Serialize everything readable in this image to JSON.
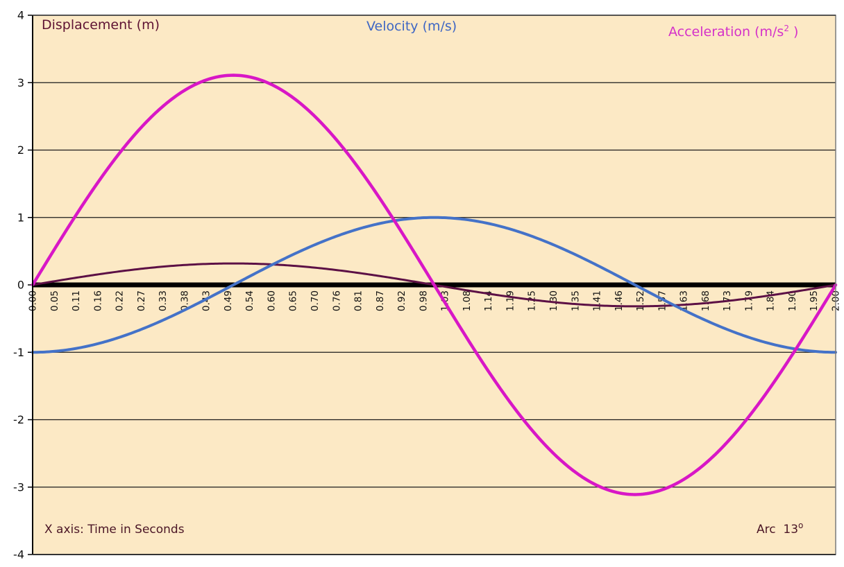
{
  "figure": {
    "annotations": {
      "displacement_title": "Displacement (m)",
      "velocity_title": "Velocity (m/s)",
      "acceleration_title_pre": "Acceleration (m/s",
      "acceleration_title_sup": "2",
      "acceleration_title_post": " )",
      "x_axis_note": "X axis: Time in Seconds",
      "arc_note_pre": "Arc  13",
      "arc_note_sup": "o"
    },
    "colors": {
      "outer_background": "#FFFFFF",
      "plot_background": "#FCE9C5",
      "displacement": "#5C1045",
      "velocity": "#4472C8",
      "acceleration": "#D817C6",
      "displacement_label": "#5E1333",
      "velocity_label": "#3E66C4",
      "acceleration_label": "#D431C9",
      "note_text": "#4B1626",
      "grid_line": "#1A1A1A",
      "zero_axis": "#000000",
      "plot_border": "#7A7A7A",
      "tick_text": "#111111"
    }
  },
  "chart_data": {
    "type": "line",
    "title": "",
    "xlabel": "Time in Seconds",
    "ylabel": "",
    "x_range": [
      0,
      2
    ],
    "ylim": [
      -4,
      4
    ],
    "grid": "horizontal-only",
    "legend_position": "in-plot corner annotations",
    "y_ticks": [
      4,
      3,
      2,
      1,
      0,
      -1,
      -2,
      -3,
      -4
    ],
    "x_tick_labels": [
      "0.00",
      "0.05",
      "0.11",
      "0.16",
      "0.22",
      "0.27",
      "0.33",
      "0.38",
      "0.43",
      "0.49",
      "0.54",
      "0.60",
      "0.65",
      "0.70",
      "0.76",
      "0.81",
      "0.87",
      "0.92",
      "0.98",
      "1.03",
      "1.08",
      "1.14",
      "1.19",
      "1.25",
      "1.30",
      "1.35",
      "1.41",
      "1.46",
      "1.52",
      "1.57",
      "1.63",
      "1.68",
      "1.73",
      "1.79",
      "1.84",
      "1.90",
      "1.95",
      "2.00"
    ],
    "series": [
      {
        "name": "Displacement (m)",
        "color": "#5C1045",
        "stroke_width": 3,
        "amplitude": 0.318,
        "waveform": "sin",
        "omega_rad_per_s": 3.14159,
        "key_points": [
          {
            "t": 0.0,
            "y": 0.0
          },
          {
            "t": 0.5,
            "y": 0.32
          },
          {
            "t": 1.0,
            "y": 0.0
          },
          {
            "t": 1.5,
            "y": -0.32
          },
          {
            "t": 2.0,
            "y": 0.0
          }
        ]
      },
      {
        "name": "Velocity (m/s)",
        "color": "#4472C8",
        "stroke_width": 4,
        "amplitude": -1,
        "waveform": "cos",
        "omega_rad_per_s": 3.14159,
        "key_points": [
          {
            "t": 0.0,
            "y": -1.0
          },
          {
            "t": 0.5,
            "y": 0.0
          },
          {
            "t": 1.0,
            "y": 1.0
          },
          {
            "t": 1.5,
            "y": 0.0
          },
          {
            "t": 2.0,
            "y": -1.0
          }
        ]
      },
      {
        "name": "Acceleration (m/s²)",
        "color": "#D817C6",
        "stroke_width": 4.5,
        "amplitude": 3.11,
        "waveform": "sin",
        "omega_rad_per_s": 3.14159,
        "key_points": [
          {
            "t": 0.0,
            "y": 0.0
          },
          {
            "t": 0.5,
            "y": 3.11
          },
          {
            "t": 1.0,
            "y": 0.0
          },
          {
            "t": 1.5,
            "y": -3.11
          },
          {
            "t": 2.0,
            "y": 0.0
          }
        ]
      }
    ]
  }
}
